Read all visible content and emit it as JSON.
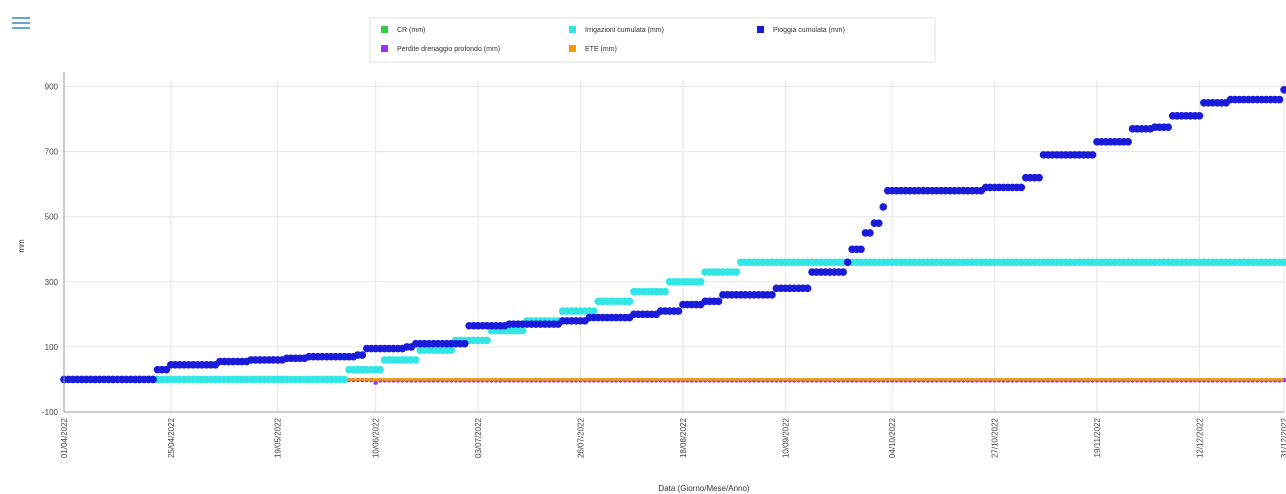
{
  "toolbar": {
    "menu_icon": "hamburger-menu-icon"
  },
  "chart_data": {
    "type": "scatter",
    "title": "",
    "xlabel": "Data (Giorno/Mese/Anno)",
    "ylabel": "mm",
    "x_start": "2022-04-01",
    "x_end": "2022-12-31",
    "xlim": [
      "2022-04-01",
      "2022-12-31"
    ],
    "ylim": [
      -100,
      920
    ],
    "y_ticks": [
      -100,
      100,
      300,
      500,
      700,
      900
    ],
    "x_ticks": [
      "01/04/2022",
      "25/04/2022",
      "19/05/2022",
      "10/06/2022",
      "03/07/2022",
      "26/07/2022",
      "18/08/2022",
      "10/09/2022",
      "04/10/2022",
      "27/10/2022",
      "19/11/2022",
      "12/12/2022",
      "31/12/2022"
    ],
    "grid": true,
    "legend_position": "top-center",
    "series": [
      {
        "name": "CR (mm)",
        "color": "#2ecc40",
        "x": [
          "2022-04-01",
          "2022-12-31"
        ],
        "y": [
          0,
          0
        ]
      },
      {
        "name": "Irrigazioni cumulata (mm)",
        "color": "#33e6e6",
        "x": [
          "2022-04-01",
          "2022-06-03",
          "2022-06-04",
          "2022-06-11",
          "2022-06-12",
          "2022-06-19",
          "2022-06-20",
          "2022-06-27",
          "2022-06-28",
          "2022-07-05",
          "2022-07-06",
          "2022-07-13",
          "2022-07-14",
          "2022-07-21",
          "2022-07-22",
          "2022-07-29",
          "2022-07-30",
          "2022-08-06",
          "2022-08-07",
          "2022-08-14",
          "2022-08-15",
          "2022-08-22",
          "2022-08-23",
          "2022-08-30",
          "2022-08-31",
          "2022-12-31"
        ],
        "y": [
          0,
          0,
          30,
          30,
          60,
          60,
          90,
          90,
          120,
          120,
          150,
          150,
          180,
          180,
          210,
          210,
          240,
          240,
          270,
          270,
          300,
          300,
          330,
          330,
          360,
          360
        ]
      },
      {
        "name": "Pioggia cumulata (mm)",
        "color": "#1a1adb",
        "x": [
          "2022-04-01",
          "2022-04-18",
          "2022-04-22",
          "2022-04-25",
          "2022-05-03",
          "2022-05-06",
          "2022-05-13",
          "2022-05-21",
          "2022-05-26",
          "2022-06-06",
          "2022-06-08",
          "2022-06-17",
          "2022-06-19",
          "2022-07-01",
          "2022-07-10",
          "2022-07-22",
          "2022-07-28",
          "2022-08-07",
          "2022-08-13",
          "2022-08-18",
          "2022-08-23",
          "2022-08-27",
          "2022-09-07",
          "2022-09-08",
          "2022-09-16",
          "2022-09-24",
          "2022-09-25",
          "2022-09-28",
          "2022-09-30",
          "2022-10-02",
          "2022-10-03",
          "2022-10-22",
          "2022-10-25",
          "2022-11-03",
          "2022-11-07",
          "2022-11-19",
          "2022-11-27",
          "2022-12-02",
          "2022-12-06",
          "2022-12-13",
          "2022-12-19",
          "2022-12-31"
        ],
        "y": [
          0,
          0,
          30,
          45,
          45,
          55,
          60,
          65,
          70,
          75,
          95,
          100,
          110,
          165,
          170,
          180,
          190,
          200,
          210,
          230,
          240,
          260,
          260,
          280,
          330,
          360,
          400,
          450,
          480,
          530,
          580,
          580,
          590,
          620,
          690,
          730,
          770,
          775,
          810,
          850,
          860,
          890
        ]
      },
      {
        "name": "Perdite drenaggio profondo (mm)",
        "color": "#9b30ff",
        "x": [
          "2022-04-01",
          "2022-06-09",
          "2022-06-10",
          "2022-06-11",
          "2022-12-31"
        ],
        "y": [
          -2,
          -2,
          -10,
          -3,
          -2
        ]
      },
      {
        "name": "ETE (mm)",
        "color": "#ff9900",
        "x": [
          "2022-04-01",
          "2022-12-31"
        ],
        "y": [
          0,
          0
        ]
      }
    ]
  }
}
